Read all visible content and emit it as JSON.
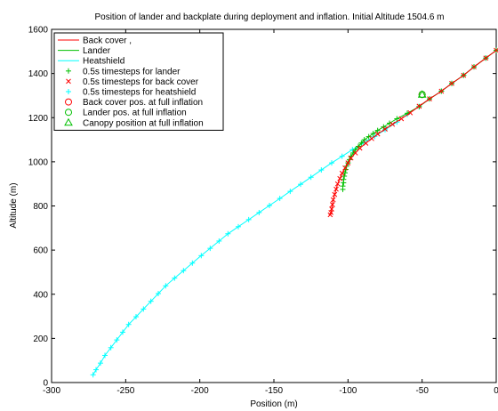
{
  "chart_data": {
    "type": "line",
    "title": "Position of lander and backplate during deployment and inflation. Initial Altitude 1504.6 m",
    "xlabel": "Position (m)",
    "ylabel": "Altitude (m)",
    "xlim": [
      -300,
      0
    ],
    "ylim": [
      0,
      1600
    ],
    "xticks": [
      -300,
      -250,
      -200,
      -150,
      -100,
      -50,
      0
    ],
    "yticks": [
      0,
      200,
      400,
      600,
      800,
      1000,
      1200,
      1400,
      1600
    ],
    "grid": false,
    "legend_position": "top-left",
    "legend": [
      {
        "label": "Back cover ,",
        "color": "#ff0000",
        "style": "line"
      },
      {
        "label": "Lander",
        "color": "#00c000",
        "style": "line"
      },
      {
        "label": "Heatshield",
        "color": "#00ffff",
        "style": "line"
      },
      {
        "label": "0.5s timesteps for lander",
        "color": "#00c000",
        "style": "plus"
      },
      {
        "label": "0.5s timesteps for back cover",
        "color": "#ff0000",
        "style": "x"
      },
      {
        "label": "0.5s timesteps for heatshield",
        "color": "#00ffff",
        "style": "plus"
      },
      {
        "label": "Back cover pos. at full inflation",
        "color": "#ff0000",
        "style": "circle"
      },
      {
        "label": "Lander pos. at full inflation",
        "color": "#00c000",
        "style": "circle"
      },
      {
        "label": "Canopy position at full inflation",
        "color": "#00c000",
        "style": "triangle"
      }
    ],
    "series": [
      {
        "key": "heatshield",
        "color": "#00ffff",
        "marker": "plus",
        "x": [
          0,
          -7,
          -15,
          -22,
          -30,
          -37,
          -45,
          -52,
          -60,
          -67,
          -75,
          -82,
          -90,
          -97,
          -104,
          -111,
          -118,
          -125,
          -132,
          -139,
          -146,
          -153,
          -160,
          -167,
          -174,
          -181,
          -187,
          -193,
          -199,
          -205,
          -211,
          -217,
          -223,
          -228,
          -233,
          -238,
          -243,
          -248,
          -252,
          -256,
          -260,
          -264,
          -267,
          -270,
          -272
        ],
        "y": [
          1505,
          1470,
          1430,
          1392,
          1355,
          1320,
          1285,
          1250,
          1215,
          1180,
          1145,
          1115,
          1085,
          1055,
          1025,
          995,
          963,
          930,
          898,
          866,
          834,
          802,
          770,
          738,
          706,
          674,
          641,
          608,
          575,
          541,
          507,
          473,
          438,
          403,
          368,
          333,
          298,
          263,
          228,
          193,
          158,
          123,
          88,
          58,
          35
        ]
      },
      {
        "key": "lander",
        "color": "#00c000",
        "marker": "plus",
        "x": [
          0,
          -7,
          -15,
          -22,
          -30,
          -37,
          -45,
          -52,
          -60,
          -67,
          -72,
          -76,
          -80,
          -83,
          -86,
          -89,
          -91,
          -93,
          -95,
          -96.5,
          -98,
          -99,
          -100,
          -101,
          -101.5,
          -102,
          -102.5,
          -103,
          -103,
          -103.5,
          -103.5
        ],
        "y": [
          1505,
          1470,
          1430,
          1392,
          1355,
          1320,
          1285,
          1250,
          1220,
          1195,
          1175,
          1158,
          1142,
          1128,
          1114,
          1100,
          1085,
          1070,
          1055,
          1040,
          1025,
          1010,
          995,
          980,
          965,
          950,
          935,
          920,
          905,
          890,
          875
        ]
      },
      {
        "key": "backcover",
        "color": "#ff0000",
        "marker": "x",
        "x": [
          0,
          -7,
          -15,
          -22,
          -30,
          -37,
          -45,
          -52,
          -58,
          -64,
          -70,
          -75,
          -80,
          -84,
          -88,
          -92,
          -95,
          -98,
          -100,
          -102,
          -104,
          -105.5,
          -107,
          -108,
          -109,
          -110,
          -110.5,
          -111,
          -111.5,
          -112
        ],
        "y": [
          1505,
          1470,
          1430,
          1392,
          1355,
          1320,
          1285,
          1252,
          1222,
          1195,
          1170,
          1148,
          1126,
          1105,
          1084,
          1062,
          1040,
          1017,
          995,
          972,
          948,
          924,
          900,
          876,
          852,
          828,
          806,
          786,
          770,
          760
        ]
      }
    ],
    "special_points": [
      {
        "key": "backcover-full-inflation",
        "x": -50,
        "y": 1305,
        "color": "#ff0000",
        "marker": "circle"
      },
      {
        "key": "lander-full-inflation",
        "x": -50,
        "y": 1305,
        "color": "#00c000",
        "marker": "circle"
      },
      {
        "key": "canopy-full-inflation",
        "x": -50,
        "y": 1305,
        "color": "#00c000",
        "marker": "triangle"
      }
    ]
  }
}
